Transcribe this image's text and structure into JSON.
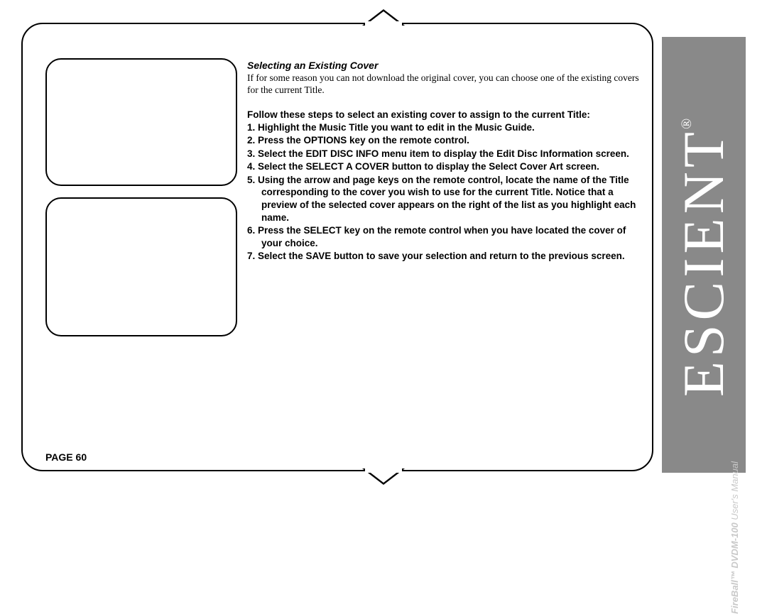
{
  "section_title": "Selecting an Existing Cover",
  "intro": "If for some reason you can not download the original cover, you can choose one of the existing covers for the current Title.",
  "steps_intro": "Follow these steps to select an existing cover to assign to the current Title:",
  "steps": [
    "1. Highlight the Music Title you want to edit in the Music Guide.",
    "2. Press the OPTIONS key on the remote control.",
    "3. Select the EDIT DISC INFO menu item to display the Edit Disc Information screen.",
    "4. Select the SELECT A COVER button to display the Select Cover Art screen.",
    "5. Using the arrow and page keys on the remote control, locate the name of the Title corresponding to the cover you wish to use for the current Title. Notice that a preview of the selected cover appears on the right of the list as you highlight each name.",
    "6. Press the SELECT key on the remote control when you have located the cover of your choice.",
    "7. Select the SAVE button to save your selection and return to the previous screen."
  ],
  "page_label": "PAGE 60",
  "brand": "ESCIENT",
  "manual": {
    "product_bold": "FireBall™",
    "model_bold": " DVDM-100 ",
    "suffix": "User's Manual"
  },
  "colors": {
    "sidebar_bg": "#898989",
    "sidebar_text": "#ffffff",
    "manual_text": "#c9c9c9",
    "border": "#000000"
  }
}
